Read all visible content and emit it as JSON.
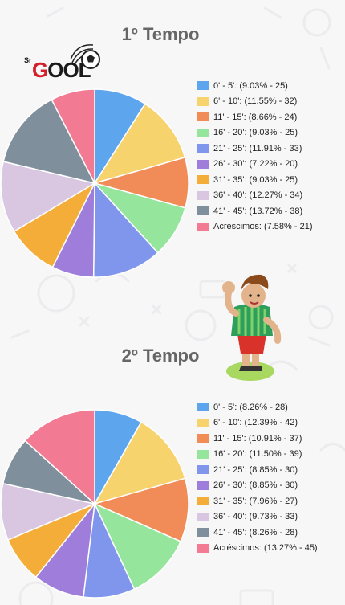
{
  "brand": {
    "prefix": "Sr",
    "g": "G",
    "rest": "OOL"
  },
  "colors": [
    "#5da6ee",
    "#f7d36e",
    "#f18c58",
    "#95e59c",
    "#7f96ec",
    "#9f7ddb",
    "#f5ad39",
    "#d9c7e1",
    "#7f8f9c",
    "#f27a93"
  ],
  "chart_data": [
    {
      "type": "pie",
      "title": "1º Tempo",
      "legend_placement": "right",
      "categories": [
        "0' - 5'",
        "6' - 10'",
        "11' - 15'",
        "16' - 20'",
        "21' - 25'",
        "26' - 30'",
        "31' - 35'",
        "36' - 40'",
        "41' - 45'",
        "Acréscimos"
      ],
      "values": [
        25,
        32,
        24,
        25,
        33,
        20,
        25,
        34,
        38,
        21
      ],
      "percents": [
        "9.03%",
        "11.55%",
        "8.66%",
        "9.03%",
        "11.91%",
        "7.22%",
        "9.03%",
        "12.27%",
        "13.72%",
        "7.58%"
      ]
    },
    {
      "type": "pie",
      "title": "2º Tempo",
      "legend_placement": "right",
      "categories": [
        "0' - 5'",
        "6' - 10'",
        "11' - 15'",
        "16' - 20'",
        "21' - 25'",
        "26' - 30'",
        "31' - 35'",
        "36' - 40'",
        "41' - 45'",
        "Acréscimos"
      ],
      "values": [
        28,
        42,
        37,
        39,
        30,
        30,
        27,
        33,
        28,
        45
      ],
      "percents": [
        "8.26%",
        "12.39%",
        "10.91%",
        "11.50%",
        "8.85%",
        "8.85%",
        "7.96%",
        "9.73%",
        "8.26%",
        "13.27%"
      ]
    }
  ]
}
